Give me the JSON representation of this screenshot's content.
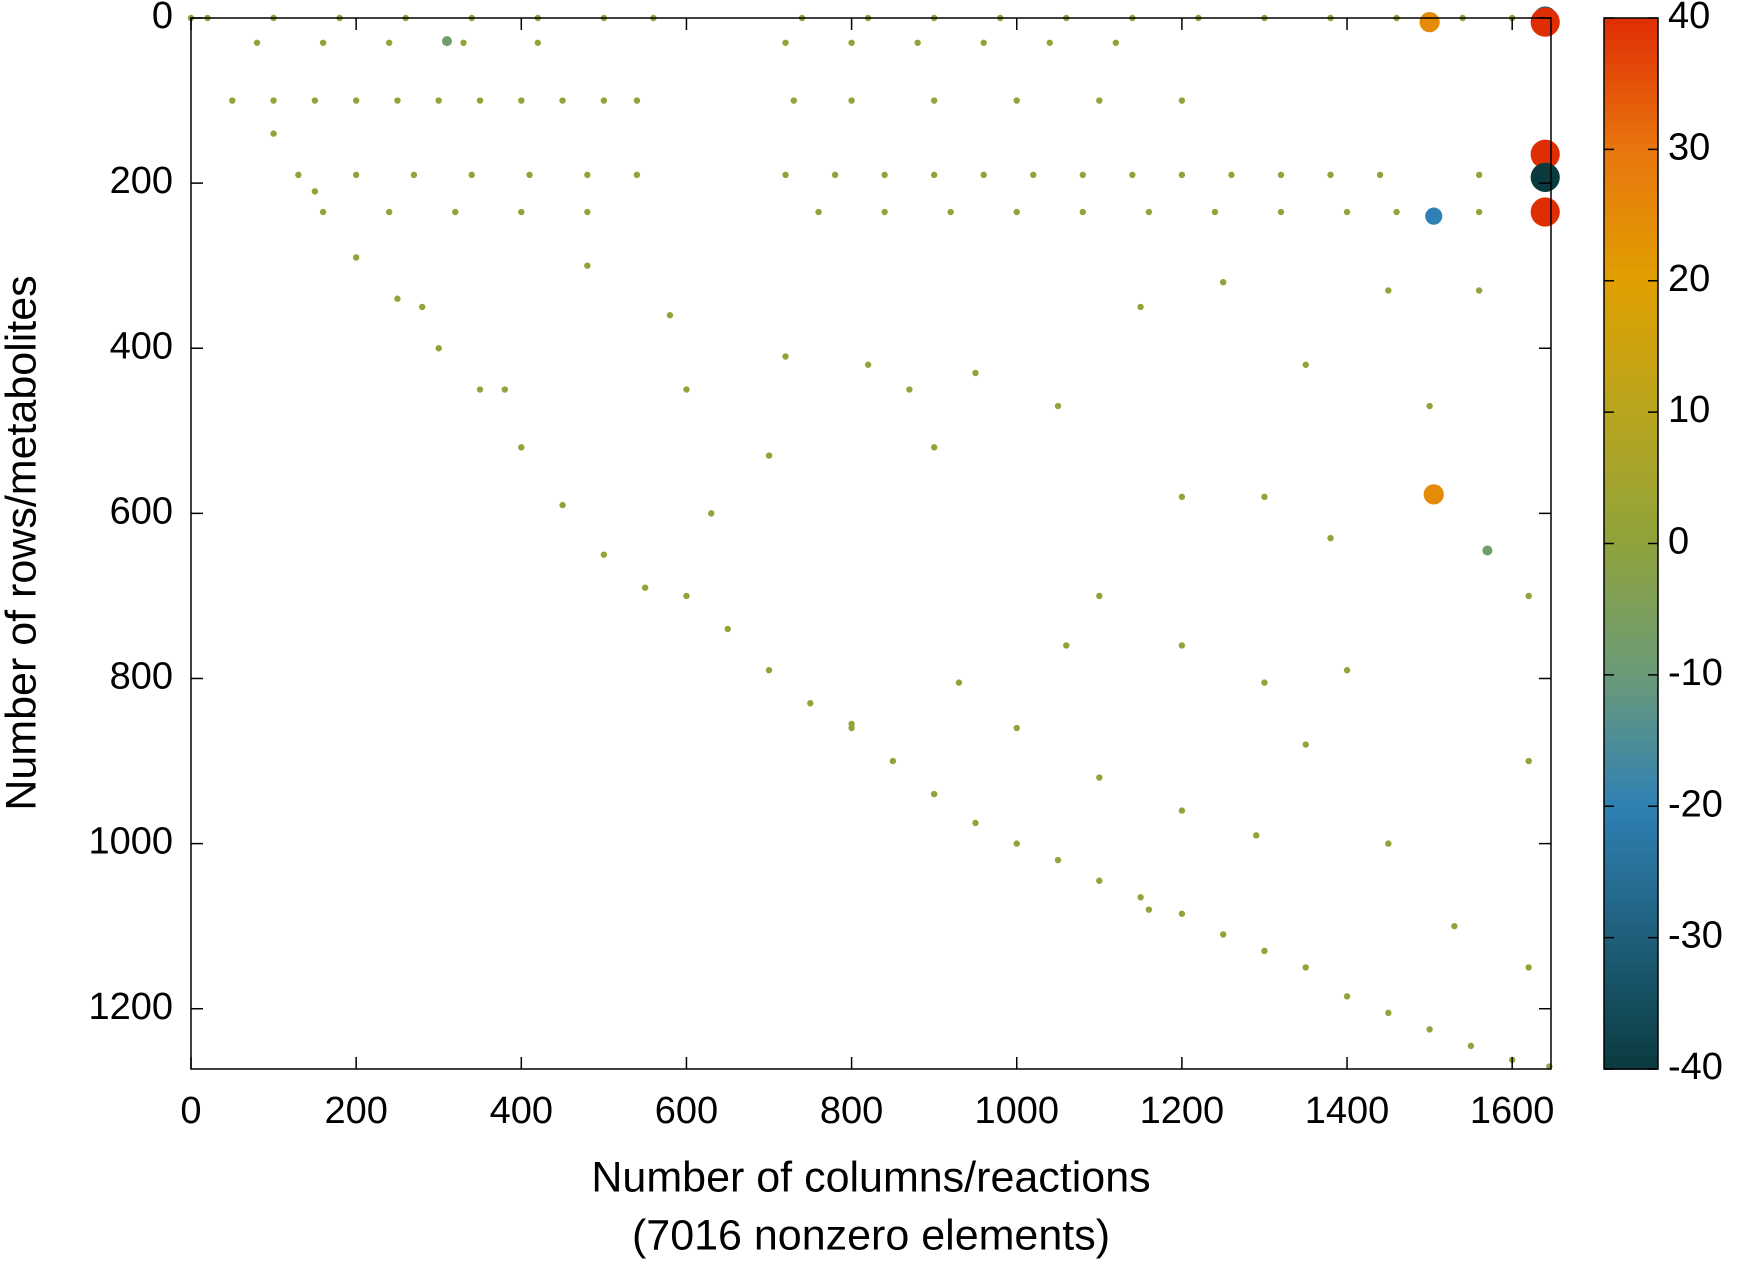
{
  "chart_data": {
    "type": "scatter",
    "x_label": "Number of columns/reactions",
    "x_sublabel": "(7016 nonzero elements)",
    "y_label": "Number of rows/metabolites",
    "xlim": [
      0,
      1647
    ],
    "ylim": [
      1273,
      0
    ],
    "xticks": [
      0,
      200,
      400,
      600,
      800,
      1000,
      1200,
      1400,
      1600
    ],
    "yticks": [
      0,
      200,
      400,
      600,
      800,
      1000,
      1200
    ],
    "clim": [
      -40,
      40
    ],
    "cticks": [
      -40,
      -30,
      -20,
      -10,
      0,
      10,
      20,
      30,
      40
    ],
    "colormap": [
      "#0a3a3e",
      "#1f5f7a",
      "#2f80b4",
      "#6a9a78",
      "#8fa33c",
      "#b8a51e",
      "#e0a000",
      "#e8760e",
      "#e02e04"
    ],
    "x": [
      0,
      50,
      100,
      150,
      200,
      250,
      300,
      350,
      400,
      450,
      500,
      550,
      600,
      650,
      700,
      750,
      800,
      850,
      900,
      950,
      1000,
      1050,
      1100,
      1150,
      1200,
      1250,
      1300,
      1350,
      1400,
      1450,
      1500,
      1550,
      1600,
      1645,
      20,
      100,
      180,
      260,
      340,
      420,
      500,
      560,
      740,
      820,
      900,
      980,
      1060,
      1140,
      1220,
      1300,
      1380,
      1460,
      1540,
      1600,
      80,
      160,
      240,
      330,
      420,
      720,
      800,
      880,
      960,
      1040,
      1120,
      100,
      150,
      200,
      250,
      300,
      350,
      400,
      450,
      500,
      540,
      730,
      800,
      900,
      1000,
      1100,
      1200,
      130,
      200,
      270,
      340,
      410,
      480,
      540,
      720,
      780,
      840,
      900,
      960,
      1020,
      1080,
      1140,
      1200,
      1260,
      1320,
      1380,
      1440,
      1560,
      160,
      240,
      320,
      400,
      480,
      760,
      840,
      920,
      1000,
      1080,
      1160,
      1240,
      1320,
      1400,
      1460,
      1560,
      280,
      380,
      480,
      720,
      820,
      950,
      1050,
      1150,
      1250,
      1350,
      1450,
      1560,
      600,
      900,
      1200,
      1300,
      1380,
      1100,
      1200,
      1400,
      930,
      1300,
      1000,
      1100,
      1350,
      1200,
      1450,
      1530,
      1290,
      1160,
      1620,
      1620,
      1620,
      1060,
      800,
      700,
      630,
      580,
      870,
      1500,
      1640,
      1640,
      1500,
      1640,
      1640,
      1640,
      1505,
      1505,
      1570,
      310
    ],
    "y": [
      0,
      100,
      140,
      210,
      290,
      340,
      400,
      450,
      520,
      590,
      650,
      690,
      700,
      740,
      790,
      830,
      855,
      900,
      940,
      975,
      1000,
      1020,
      1045,
      1065,
      1085,
      1110,
      1130,
      1150,
      1185,
      1205,
      1225,
      1245,
      1262,
      1270,
      0,
      0,
      0,
      0,
      0,
      0,
      0,
      0,
      0,
      0,
      0,
      0,
      0,
      0,
      0,
      0,
      0,
      0,
      0,
      0,
      30,
      30,
      30,
      30,
      30,
      30,
      30,
      30,
      30,
      30,
      30,
      100,
      100,
      100,
      100,
      100,
      100,
      100,
      100,
      100,
      100,
      100,
      100,
      100,
      100,
      100,
      100,
      190,
      190,
      190,
      190,
      190,
      190,
      190,
      190,
      190,
      190,
      190,
      190,
      190,
      190,
      190,
      190,
      190,
      190,
      190,
      190,
      190,
      235,
      235,
      235,
      235,
      235,
      235,
      235,
      235,
      235,
      235,
      235,
      235,
      235,
      235,
      235,
      235,
      350,
      450,
      300,
      410,
      420,
      430,
      470,
      350,
      320,
      420,
      330,
      330,
      450,
      520,
      580,
      580,
      630,
      700,
      760,
      790,
      805,
      805,
      860,
      920,
      880,
      960,
      1000,
      1100,
      990,
      1080,
      1150,
      700,
      900,
      760,
      860,
      530,
      600,
      360,
      450,
      470,
      0,
      5,
      5,
      165,
      193,
      235,
      240,
      577,
      645,
      28
    ],
    "values": [
      1,
      1,
      1,
      1,
      1,
      1,
      1,
      1,
      1,
      1,
      1,
      1,
      1,
      1,
      1,
      1,
      1,
      1,
      1,
      1,
      1,
      1,
      1,
      1,
      1,
      1,
      1,
      1,
      1,
      1,
      1,
      1,
      1,
      1,
      1,
      1,
      1,
      1,
      1,
      1,
      1,
      1,
      1,
      1,
      1,
      1,
      1,
      1,
      1,
      1,
      1,
      1,
      1,
      1,
      1,
      1,
      1,
      1,
      1,
      1,
      1,
      1,
      1,
      1,
      1,
      1,
      1,
      1,
      1,
      1,
      1,
      1,
      1,
      1,
      1,
      1,
      1,
      1,
      1,
      1,
      1,
      1,
      1,
      1,
      1,
      1,
      1,
      1,
      1,
      1,
      1,
      1,
      1,
      1,
      1,
      1,
      1,
      1,
      1,
      1,
      1,
      1,
      1,
      1,
      1,
      1,
      1,
      1,
      1,
      1,
      1,
      1,
      1,
      1,
      1,
      1,
      1,
      1,
      1,
      1,
      1,
      1,
      1,
      1,
      1,
      1,
      1,
      1,
      1,
      1,
      1,
      1,
      1,
      1,
      1,
      1,
      1,
      1,
      1,
      1,
      1,
      1,
      1,
      1,
      1,
      1,
      1,
      1,
      1,
      1,
      1,
      1,
      1,
      1,
      1,
      1,
      1,
      1,
      -30,
      40,
      25,
      40,
      -40,
      40,
      -20,
      25,
      -8,
      -8
    ]
  }
}
